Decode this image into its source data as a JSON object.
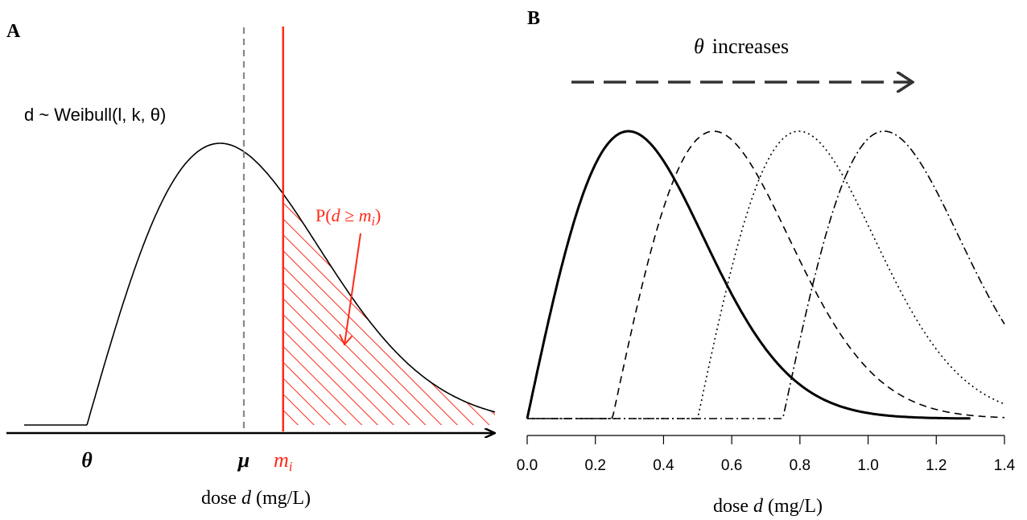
{
  "chart_data": [
    {
      "panel": "A",
      "type": "line",
      "formula_label": "d ~ Weibull(l, k, θ)",
      "annotation": {
        "prefix": "P(",
        "var": "d",
        "op": " ≥ ",
        "m": "m",
        "sub": "i",
        "suffix": ")"
      },
      "xlabel": {
        "prefix": "dose ",
        "var": "d",
        "suffix": " (mg/L)"
      },
      "x_markers": [
        {
          "name": "theta",
          "label": "θ",
          "x": 0.0
        },
        {
          "name": "mu",
          "label": "μ",
          "x": 1.0,
          "style": "dashed",
          "color": "#888888"
        },
        {
          "name": "mi",
          "label": "m",
          "sub": "i",
          "x": 1.25,
          "style": "solid",
          "color": "#ff2a1a"
        }
      ],
      "distribution": {
        "location": 0.0,
        "scale": 1.2,
        "shape": 2.0
      },
      "shaded_region": "x ≥ m_i",
      "colors": {
        "curve": "#000000",
        "highlight": "#ff2a1a",
        "mu_line": "#888888"
      }
    },
    {
      "panel": "B",
      "type": "line",
      "arrow_label": {
        "var": "θ",
        "text": "increases"
      },
      "xlabel": {
        "prefix": "dose ",
        "var": "d",
        "suffix": " (mg/L)"
      },
      "xlim": [
        0,
        1.4
      ],
      "xticks": [
        "0.0",
        "0.2",
        "0.4",
        "0.6",
        "0.8",
        "1.0",
        "1.2",
        "1.4"
      ],
      "series": [
        {
          "style": "solid",
          "theta": 0.0,
          "scale": 0.42,
          "shape": 2.0,
          "x_end": 1.3
        },
        {
          "style": "dashed",
          "theta": 0.25,
          "scale": 0.42,
          "shape": 2.0,
          "x_end": 1.4
        },
        {
          "style": "dotted",
          "theta": 0.5,
          "scale": 0.42,
          "shape": 2.0,
          "x_end": 1.4
        },
        {
          "style": "dotdash",
          "theta": 0.75,
          "scale": 0.42,
          "shape": 2.0,
          "x_end": 1.4
        }
      ]
    }
  ]
}
